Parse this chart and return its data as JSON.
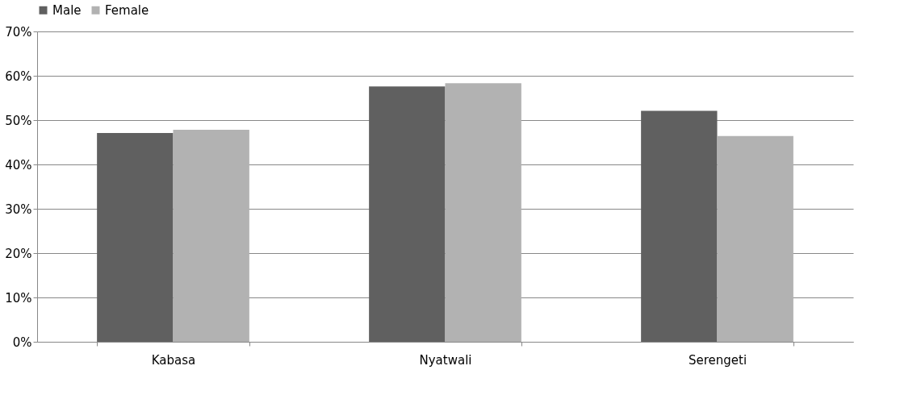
{
  "chart_data": {
    "type": "bar",
    "categories": [
      "Kabasa",
      "Nyatwali",
      "Serengeti"
    ],
    "series": [
      {
        "name": "Male",
        "color": "#606060",
        "values": [
          47.1,
          57.6,
          52.1
        ]
      },
      {
        "name": "Female",
        "color": "#b2b2b2",
        "values": [
          47.8,
          58.3,
          46.4
        ]
      }
    ],
    "ylim": [
      0,
      70
    ],
    "yticks": [
      {
        "value": 0,
        "label": "0%"
      },
      {
        "value": 10,
        "label": "10%"
      },
      {
        "value": 20,
        "label": "20%"
      },
      {
        "value": 30,
        "label": "30%"
      },
      {
        "value": 40,
        "label": "40%"
      },
      {
        "value": 50,
        "label": "50%"
      },
      {
        "value": 60,
        "label": "60%"
      },
      {
        "value": 70,
        "label": "70%"
      }
    ],
    "grid": "y",
    "legend": "top"
  }
}
